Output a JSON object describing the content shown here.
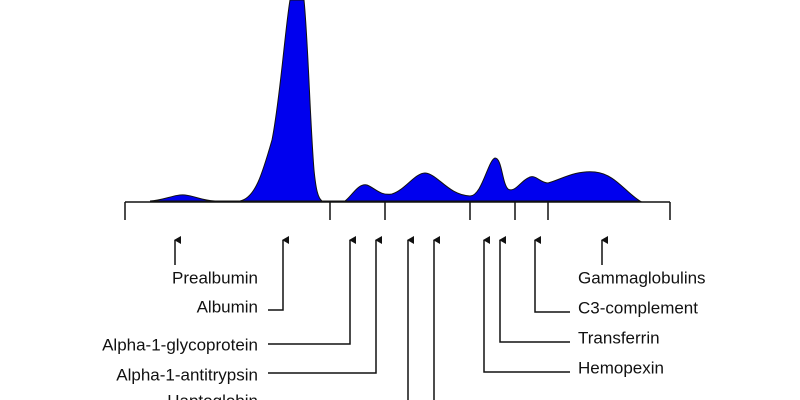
{
  "left_labels": [
    "Prealbumin",
    "Albumin",
    "Alpha-1-glycoprotein",
    "Alpha-1-antitrypsin",
    "Haptoglobin"
  ],
  "right_labels": [
    "Gammaglobulins",
    "C3-complement",
    "Transferrin",
    "Hemopexin"
  ]
}
